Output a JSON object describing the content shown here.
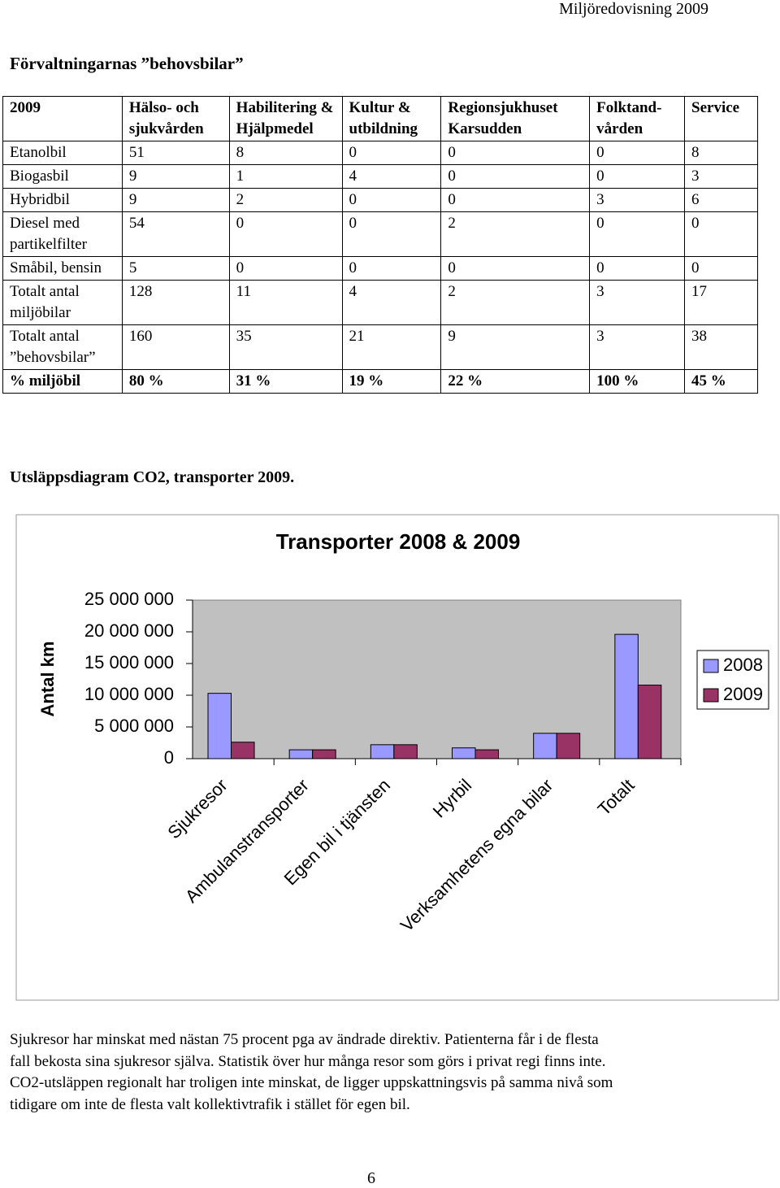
{
  "header": {
    "running_title": "Miljöredovisning 2009"
  },
  "section_title": "Förvaltningarnas ”behovsbilar”",
  "table": {
    "header": [
      "2009",
      "Hälso- och sjukvården",
      "Habilitering & Hjälpmedel",
      "Kultur & utbildning",
      "Regionsjukhuset Karsudden",
      "Folktand-vården",
      "Service"
    ],
    "rows": [
      [
        "Etanolbil",
        51,
        8,
        0,
        0,
        0,
        8
      ],
      [
        "Biogasbil",
        9,
        1,
        4,
        0,
        0,
        3
      ],
      [
        "Hybridbil",
        9,
        2,
        0,
        0,
        3,
        6
      ],
      [
        "Diesel med partikelfilter",
        54,
        0,
        0,
        2,
        0,
        0
      ],
      [
        "Småbil, bensin",
        5,
        0,
        0,
        0,
        0,
        0
      ],
      [
        "Totalt antal miljöbilar",
        128,
        11,
        4,
        2,
        3,
        17
      ],
      [
        "Totalt antal ”behovsbilar”",
        160,
        35,
        21,
        9,
        3,
        38
      ],
      [
        "% miljöbil",
        "80 %",
        "31 %",
        "19 %",
        "22 %",
        "100 %",
        "45 %"
      ]
    ]
  },
  "chart_caption": "Utsläppsdiagram CO2, transporter 2009.",
  "chart_data": {
    "type": "bar",
    "title": "Transporter 2008 & 2009",
    "y_label": "Antal km",
    "categories": [
      "Sjukresor",
      "Ambulanstransporter",
      "Egen bil i tjänsten",
      "Hyrbil",
      "Verksamhetens egna bilar",
      "Totalt"
    ],
    "series": [
      {
        "name": "2008",
        "color": "#9999ff",
        "values": [
          10300000,
          1400000,
          2200000,
          1700000,
          4000000,
          19600000
        ]
      },
      {
        "name": "2009",
        "color": "#993366",
        "values": [
          2600000,
          1400000,
          2200000,
          1400000,
          4000000,
          11600000
        ]
      }
    ],
    "ylim": [
      0,
      25000000
    ],
    "yticks": [
      0,
      {
        "value": 5000000,
        "label": "5 000 000"
      },
      {
        "value": 10000000,
        "label": "10 000 000"
      },
      {
        "value": 15000000,
        "label": "15 000 000"
      },
      {
        "value": 20000000,
        "label": "20 000 000"
      },
      {
        "value": 25000000,
        "label": "25 000 000"
      }
    ],
    "grid": false,
    "legend": "right",
    "plot_background": "#c0c0c0"
  },
  "paragraph": {
    "lines": [
      "Sjukresor har minskat med nästan 75 procent pga av ändrade direktiv. Patienterna får i de flesta",
      "fall bekosta sina sjukresor själva. Statistik över hur många resor som görs i privat regi finns inte.",
      "CO2-utsläppen regionalt har troligen inte minskat, de ligger uppskattningsvis på samma nivå som",
      "tidigare om inte de flesta valt kollektivtrafik i stället för egen bil."
    ]
  },
  "page_number": "6"
}
